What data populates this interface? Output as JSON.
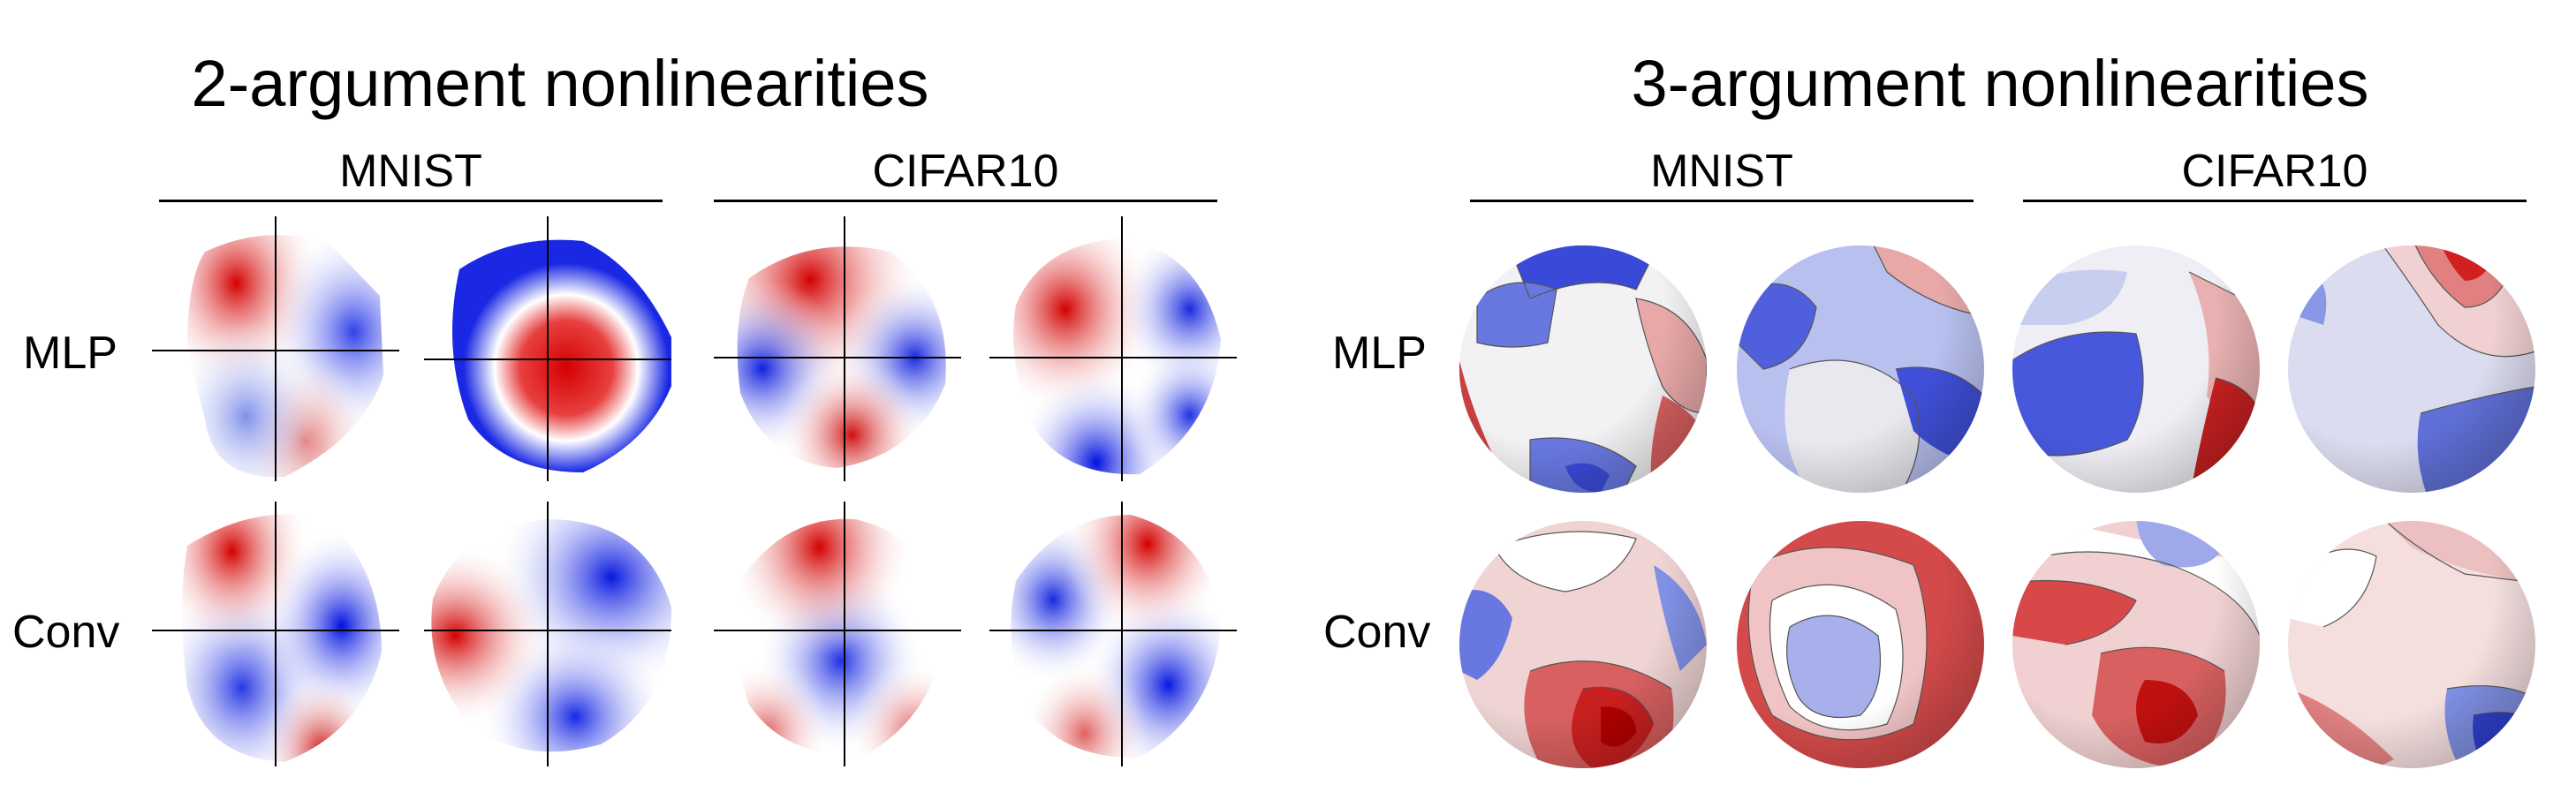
{
  "panels": [
    {
      "title": "2-argument nonlinearities",
      "datasets": [
        "MNIST",
        "CIFAR10"
      ],
      "rows": [
        "MLP",
        "Conv"
      ]
    },
    {
      "title": "3-argument nonlinearities",
      "datasets": [
        "MNIST",
        "CIFAR10"
      ],
      "rows": [
        "MLP",
        "Conv"
      ]
    }
  ],
  "colors": {
    "positive": "#d40000",
    "negative": "#0010e0",
    "zero": "#ffffff"
  }
}
